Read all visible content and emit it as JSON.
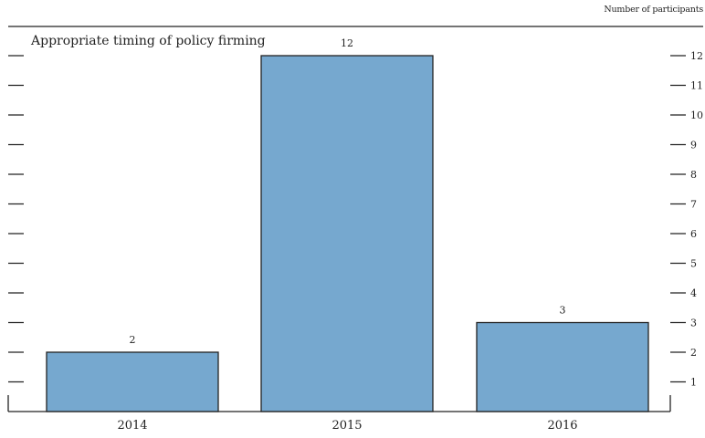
{
  "chart_data": {
    "type": "bar",
    "title": "Appropriate timing of policy firming",
    "unit_label": "Number of participants",
    "categories": [
      "2014",
      "2015",
      "2016"
    ],
    "values": [
      2,
      12,
      3
    ],
    "data_labels": [
      "2",
      "12",
      "3"
    ],
    "ylim": [
      0,
      12
    ],
    "yticks": [
      "1",
      "2",
      "3",
      "4",
      "5",
      "6",
      "7",
      "8",
      "9",
      "10",
      "11",
      "12"
    ],
    "xlabel": "",
    "ylabel": "",
    "grid": false,
    "bar_color": "#76a8cf",
    "bar_edge_color": "#222222"
  }
}
